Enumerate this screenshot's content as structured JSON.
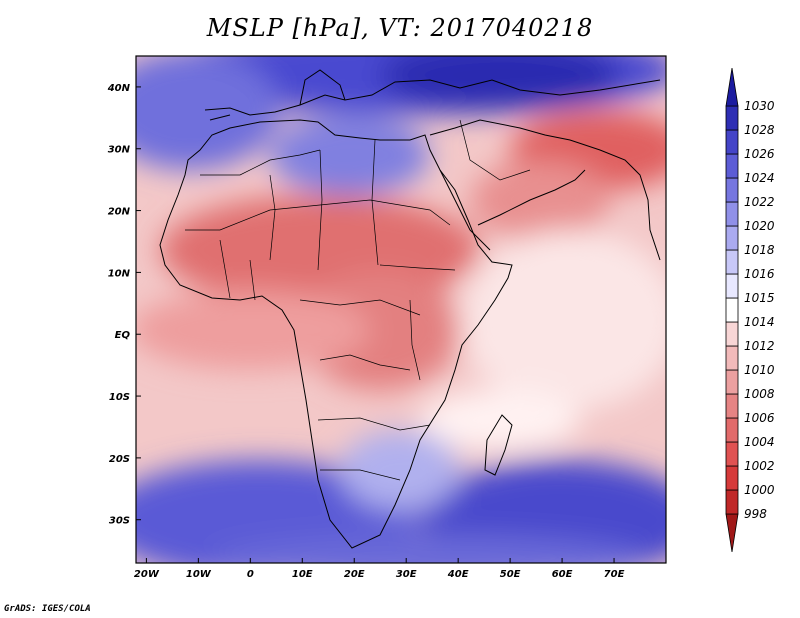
{
  "title": "MSLP [hPa], VT: 2017040218",
  "footer": "GrADS: IGES/COLA",
  "map": {
    "lon_range": [
      -22,
      80
    ],
    "lat_range": [
      -37,
      45
    ],
    "x_ticks": [
      {
        "lon": -20,
        "label": "20W"
      },
      {
        "lon": -10,
        "label": "10W"
      },
      {
        "lon": 0,
        "label": "0"
      },
      {
        "lon": 10,
        "label": "10E"
      },
      {
        "lon": 20,
        "label": "20E"
      },
      {
        "lon": 30,
        "label": "30E"
      },
      {
        "lon": 40,
        "label": "40E"
      },
      {
        "lon": 50,
        "label": "50E"
      },
      {
        "lon": 60,
        "label": "60E"
      },
      {
        "lon": 70,
        "label": "70E"
      }
    ],
    "y_ticks": [
      {
        "lat": 40,
        "label": "40N"
      },
      {
        "lat": 30,
        "label": "30N"
      },
      {
        "lat": 20,
        "label": "20N"
      },
      {
        "lat": 10,
        "label": "10N"
      },
      {
        "lat": 0,
        "label": "EQ"
      },
      {
        "lat": -10,
        "label": "10S"
      },
      {
        "lat": -20,
        "label": "20S"
      },
      {
        "lat": -30,
        "label": "30S"
      }
    ]
  },
  "colorbar": {
    "colors": [
      "#a01818",
      "#c02828",
      "#d63a3a",
      "#e05252",
      "#e26a6a",
      "#e68484",
      "#eca0a0",
      "#f2baba",
      "#f8d6d6",
      "#ffffff",
      "#e8e8ff",
      "#c8c8f8",
      "#aaaaf0",
      "#9090e8",
      "#7676e0",
      "#5c5cd6",
      "#4444c8",
      "#2e2eb4",
      "#1c1ca0"
    ],
    "labels": [
      "998",
      "1000",
      "1002",
      "1004",
      "1006",
      "1008",
      "1010",
      "1012",
      "1014",
      "1015",
      "1016",
      "1018",
      "1020",
      "1022",
      "1024",
      "1026",
      "1028",
      "1030"
    ]
  }
}
